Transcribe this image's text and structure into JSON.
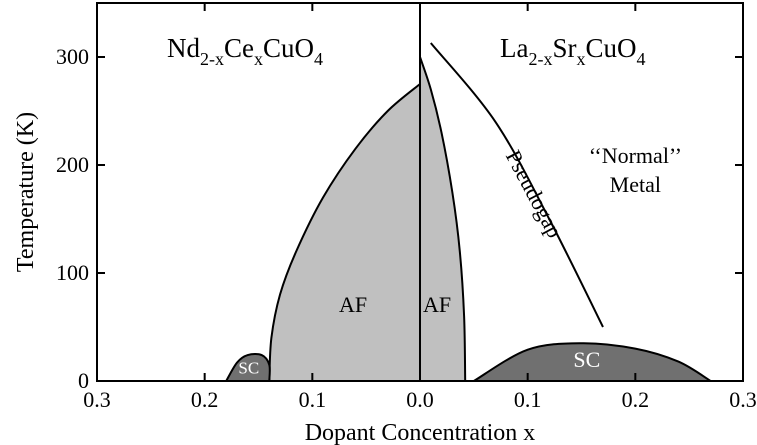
{
  "chart_data": {
    "type": "area",
    "xlabel": "Dopant Concentration x",
    "ylabel": "Temperature  (K)",
    "ylim": [
      0,
      350
    ],
    "y_ticks": [
      0,
      100,
      200,
      300
    ],
    "left_panel": {
      "compound": {
        "base1": "Nd",
        "sub1": "2-x",
        "base2": "Ce",
        "sub2": "x",
        "base3": "CuO",
        "sub3": "4"
      },
      "x_direction": "reversed",
      "xlim": [
        0.3,
        0.0
      ],
      "x_ticks": [
        0.3,
        0.2,
        0.1,
        0.0
      ],
      "regions": [
        {
          "label": "AF",
          "boundary": [
            {
              "x": 0.14,
              "y": 0
            },
            {
              "x": 0.138,
              "y": 40
            },
            {
              "x": 0.13,
              "y": 80
            },
            {
              "x": 0.115,
              "y": 120
            },
            {
              "x": 0.09,
              "y": 170
            },
            {
              "x": 0.06,
              "y": 215
            },
            {
              "x": 0.03,
              "y": 250
            },
            {
              "x": 0.0,
              "y": 275
            }
          ]
        },
        {
          "label": "SC",
          "boundary": [
            {
              "x": 0.18,
              "y": 0
            },
            {
              "x": 0.17,
              "y": 17
            },
            {
              "x": 0.16,
              "y": 24
            },
            {
              "x": 0.147,
              "y": 24
            },
            {
              "x": 0.14,
              "y": 15
            },
            {
              "x": 0.14,
              "y": 0
            }
          ]
        }
      ]
    },
    "right_panel": {
      "compound": {
        "base1": "La",
        "sub1": "2-x",
        "base2": "Sr",
        "sub2": "x",
        "base3": "CuO",
        "sub3": "4"
      },
      "x_direction": "normal",
      "xlim": [
        0.0,
        0.3
      ],
      "x_ticks": [
        0.1,
        0.2,
        0.3
      ],
      "regions": [
        {
          "label": "AF",
          "boundary": [
            {
              "x": 0.0,
              "y": 300
            },
            {
              "x": 0.01,
              "y": 270
            },
            {
              "x": 0.02,
              "y": 230
            },
            {
              "x": 0.03,
              "y": 175
            },
            {
              "x": 0.037,
              "y": 120
            },
            {
              "x": 0.041,
              "y": 60
            },
            {
              "x": 0.042,
              "y": 0
            }
          ]
        },
        {
          "label": "SC",
          "boundary": [
            {
              "x": 0.05,
              "y": 0
            },
            {
              "x": 0.1,
              "y": 29
            },
            {
              "x": 0.15,
              "y": 35
            },
            {
              "x": 0.2,
              "y": 30
            },
            {
              "x": 0.24,
              "y": 18
            },
            {
              "x": 0.27,
              "y": 0
            }
          ]
        }
      ],
      "pseudogap_line": [
        {
          "x": 0.01,
          "y": 313
        },
        {
          "x": 0.07,
          "y": 240
        },
        {
          "x": 0.12,
          "y": 150
        },
        {
          "x": 0.17,
          "y": 50
        }
      ],
      "labels": {
        "pseudogap": "Pseudogap",
        "normal_line1": "‘‘Normal’’",
        "normal_line2": "Metal"
      }
    },
    "colors": {
      "af_fill": "#c0c0c0",
      "sc_fill": "#707070",
      "line": "#000000",
      "background": "#ffffff"
    }
  }
}
